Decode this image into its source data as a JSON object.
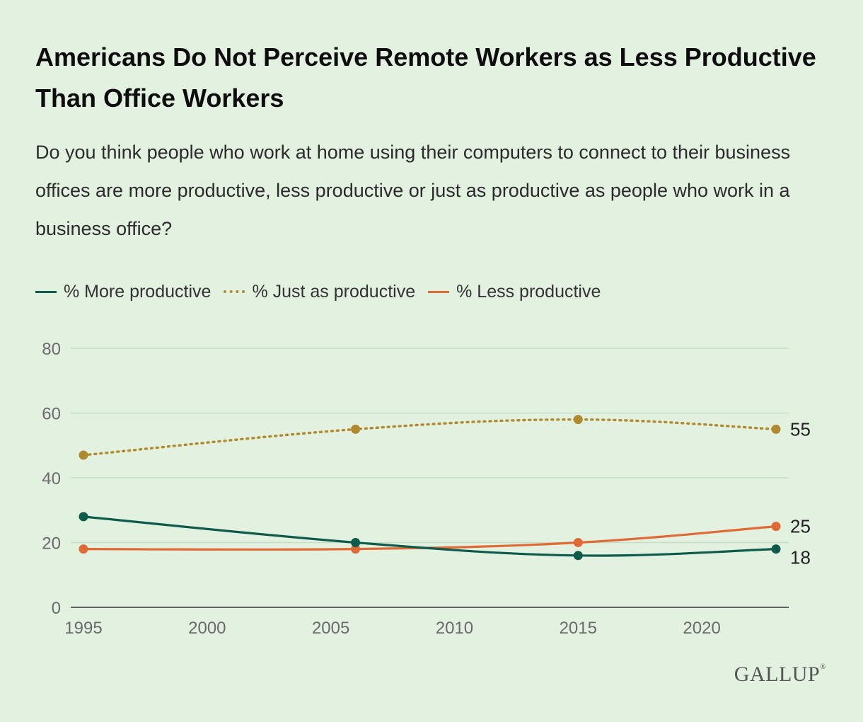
{
  "title": "Americans Do Not Perceive Remote Workers as Less Productive Than Office Workers",
  "subtitle": "Do you think people who work at home using their computers to connect to their business offices are more productive, less productive or just as productive as people who work in a business office?",
  "brand": "GALLUP",
  "chart_data": {
    "type": "line",
    "ylim": [
      0,
      80
    ],
    "xlim": [
      1995,
      2023
    ],
    "y_ticks": [
      0,
      20,
      40,
      60,
      80
    ],
    "x_ticks": [
      1995,
      2000,
      2005,
      2010,
      2015,
      2020
    ],
    "grid": true,
    "legend_position": "top-left",
    "series": [
      {
        "name": "% More productive",
        "color": "#0e5b4b",
        "style": "solid",
        "x": [
          1995,
          2006,
          2015,
          2023
        ],
        "values": [
          28,
          20,
          16,
          18
        ],
        "end_label": "18"
      },
      {
        "name": "% Just as productive",
        "color": "#b08a2e",
        "style": "dotted",
        "x": [
          1995,
          2006,
          2015,
          2023
        ],
        "values": [
          47,
          55,
          58,
          55
        ],
        "end_label": "55"
      },
      {
        "name": "% Less productive",
        "color": "#e06a35",
        "style": "solid",
        "x": [
          1995,
          2006,
          2015,
          2023
        ],
        "values": [
          18,
          18,
          20,
          25
        ],
        "end_label": "25"
      }
    ]
  }
}
